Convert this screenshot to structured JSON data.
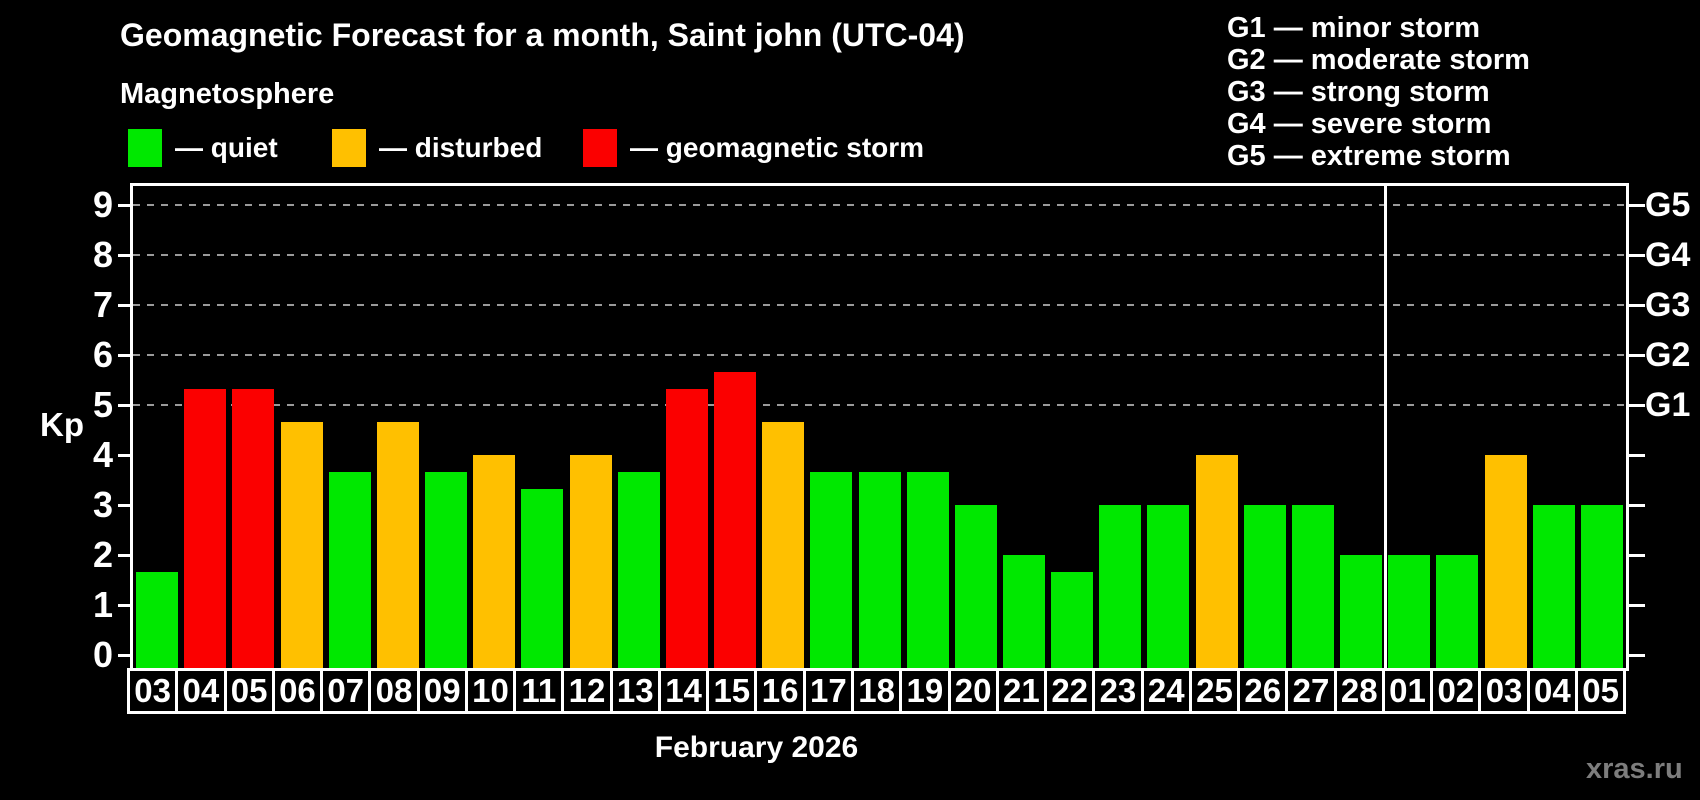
{
  "header": {
    "title": "Geomagnetic Forecast for a month, Saint john (UTC-04)",
    "subtitle": "Magnetosphere"
  },
  "legend": {
    "items": [
      {
        "key": "quiet",
        "label": "— quiet",
        "color": "#00e800"
      },
      {
        "key": "disturbed",
        "label": "— disturbed",
        "color": "#ffc000"
      },
      {
        "key": "storm",
        "label": "— geomagnetic storm",
        "color": "#fb0000"
      }
    ]
  },
  "storm_scale": [
    {
      "code": "G1",
      "kp": 5,
      "label": "G1 — minor storm"
    },
    {
      "code": "G2",
      "kp": 6,
      "label": "G2 — moderate storm"
    },
    {
      "code": "G3",
      "kp": 7,
      "label": "G3 — strong storm"
    },
    {
      "code": "G4",
      "kp": 8,
      "label": "G4 — severe storm"
    },
    {
      "code": "G5",
      "kp": 9,
      "label": "G5 — extreme storm"
    }
  ],
  "watermark": "xras.ru",
  "colors": {
    "background": "#000000",
    "axis": "#ffffff",
    "grid": "#9a9a9a",
    "text": "#ffffff",
    "watermark": "#7d7d7d"
  },
  "chart_data": {
    "type": "bar",
    "title": "Geomagnetic Forecast for a month, Saint john (UTC-04)",
    "xlabel": "February 2026",
    "ylabel": "Kp",
    "ylim": [
      0,
      9
    ],
    "yticks": [
      0,
      1,
      2,
      3,
      4,
      5,
      6,
      7,
      8,
      9
    ],
    "gridlines_at_kp": [
      5,
      6,
      7,
      8,
      9
    ],
    "grid": true,
    "legend_position": "top-left",
    "right_axis": "G storm levels G1–G5 at Kp 5–9",
    "categories": [
      "03",
      "04",
      "05",
      "06",
      "07",
      "08",
      "09",
      "10",
      "11",
      "12",
      "13",
      "14",
      "15",
      "16",
      "17",
      "18",
      "19",
      "20",
      "21",
      "22",
      "23",
      "24",
      "25",
      "26",
      "27",
      "28",
      "01",
      "02",
      "03",
      "04",
      "05"
    ],
    "values": [
      1.67,
      5.33,
      5.33,
      4.67,
      3.67,
      4.67,
      3.67,
      4,
      3.33,
      4,
      3.67,
      5.33,
      5.67,
      4.67,
      3.67,
      3.67,
      3.67,
      3,
      2,
      1.67,
      3,
      3,
      4,
      3,
      3,
      2,
      2,
      2,
      4,
      3,
      3
    ],
    "levels": [
      "quiet",
      "storm",
      "storm",
      "disturbed",
      "quiet",
      "disturbed",
      "quiet",
      "disturbed",
      "quiet",
      "disturbed",
      "quiet",
      "storm",
      "storm",
      "disturbed",
      "quiet",
      "quiet",
      "quiet",
      "quiet",
      "quiet",
      "quiet",
      "quiet",
      "quiet",
      "disturbed",
      "quiet",
      "quiet",
      "quiet",
      "quiet",
      "quiet",
      "disturbed",
      "quiet",
      "quiet"
    ],
    "month_break_index": 26
  }
}
